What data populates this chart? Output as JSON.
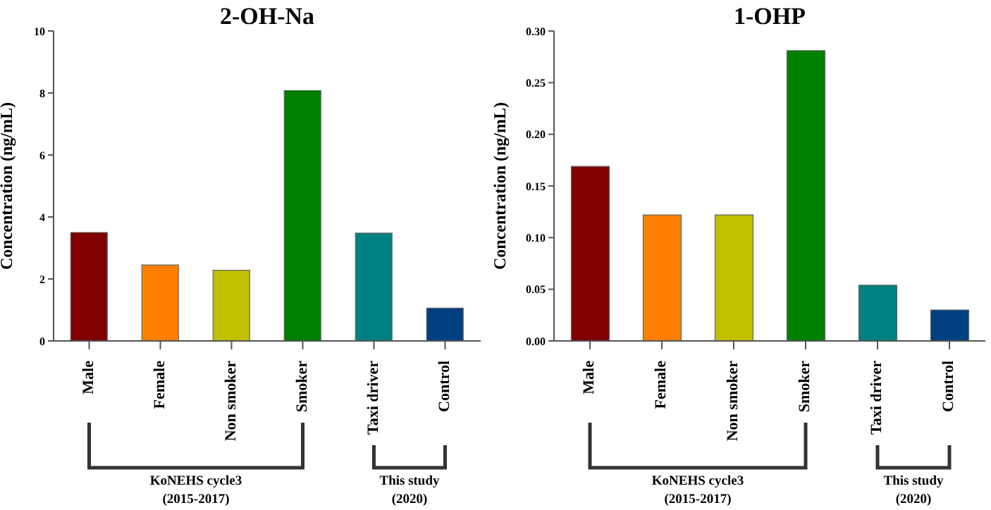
{
  "chart_data": [
    {
      "type": "bar",
      "title": "2-OH-Na",
      "ylabel": "Concentration (ng/mL)",
      "categories": [
        "Male",
        "Female",
        "Non smoker",
        "Smoker",
        "Taxi driver",
        "Control"
      ],
      "values": [
        3.5,
        2.45,
        2.28,
        8.08,
        3.48,
        1.06
      ],
      "colors": [
        "#800000",
        "#ff8000",
        "#c0c000",
        "#008000",
        "#008080",
        "#004080"
      ],
      "ylim": [
        0,
        10
      ],
      "yticks": [
        0,
        2,
        4,
        6,
        8,
        10
      ],
      "grid": false,
      "legend": false,
      "annotations": [
        "KoNEHS cycle3\n(2015-2017)",
        "This study\n(2020)"
      ]
    },
    {
      "type": "bar",
      "title": "1-OHP",
      "ylabel": "Concentration (ng/mL)",
      "categories": [
        "Male",
        "Female",
        "Non smoker",
        "Smoker",
        "Taxi driver",
        "Control"
      ],
      "values": [
        0.169,
        0.122,
        0.122,
        0.281,
        0.054,
        0.03
      ],
      "colors": [
        "#800000",
        "#ff8000",
        "#c0c000",
        "#008000",
        "#008080",
        "#004080"
      ],
      "ylim": [
        0,
        0.3
      ],
      "yticks": [
        {
          "value": 0,
          "label": "0.00"
        },
        {
          "value": 0.05,
          "label": "0.05"
        },
        {
          "value": 0.1,
          "label": "0.10"
        },
        {
          "value": 0.15,
          "label": "0.15"
        },
        {
          "value": 0.2,
          "label": "0.20"
        },
        {
          "value": 0.25,
          "label": "0.25"
        },
        {
          "value": 0.3,
          "label": "0.30"
        }
      ],
      "grid": false,
      "legend": false,
      "annotations": [
        "KoNEHS cycle3\n(2015-2017)",
        "This study\n(2020)"
      ]
    }
  ]
}
